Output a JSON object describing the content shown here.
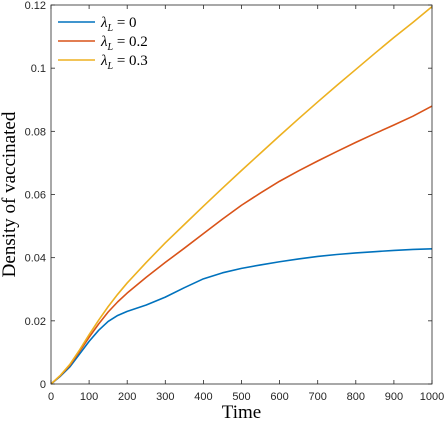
{
  "chart_data": {
    "type": "line",
    "title": "",
    "xlabel": "Time",
    "ylabel": "Density of vaccinated",
    "xlim": [
      0,
      1000
    ],
    "ylim": [
      0,
      0.12
    ],
    "xticks": [
      0,
      100,
      200,
      300,
      400,
      500,
      600,
      700,
      800,
      900,
      1000
    ],
    "yticks": [
      0,
      0.02,
      0.04,
      0.06,
      0.08,
      0.1,
      0.12
    ],
    "ytick_labels": [
      "0",
      "0.02",
      "0.04",
      "0.06",
      "0.08",
      "0.1",
      "0.12"
    ],
    "grid": false,
    "legend_position": "top-left",
    "x": [
      0,
      25,
      50,
      75,
      100,
      125,
      150,
      175,
      200,
      250,
      300,
      350,
      400,
      450,
      500,
      550,
      600,
      650,
      700,
      750,
      800,
      850,
      900,
      950,
      1000
    ],
    "series": [
      {
        "name": "λ_L = 0",
        "legend_prefix": "λ",
        "legend_sub": "L",
        "legend_suffix": " = 0",
        "color": "#0072BD",
        "values": [
          0,
          0.0025,
          0.0055,
          0.0095,
          0.0135,
          0.017,
          0.0198,
          0.0217,
          0.023,
          0.025,
          0.0275,
          0.0305,
          0.0333,
          0.0352,
          0.0366,
          0.0377,
          0.0387,
          0.0396,
          0.0404,
          0.041,
          0.0415,
          0.0419,
          0.0423,
          0.0426,
          0.0428
        ]
      },
      {
        "name": "λ_L = 0.2",
        "legend_prefix": "λ",
        "legend_sub": "L",
        "legend_suffix": " = 0.2",
        "color": "#D95319",
        "values": [
          0,
          0.0027,
          0.006,
          0.0103,
          0.0148,
          0.019,
          0.0228,
          0.026,
          0.0288,
          0.0338,
          0.0385,
          0.043,
          0.0476,
          0.0522,
          0.0566,
          0.0605,
          0.0642,
          0.0675,
          0.0706,
          0.0736,
          0.0765,
          0.0793,
          0.082,
          0.0848,
          0.088
        ]
      },
      {
        "name": "λ_L = 0.3",
        "legend_prefix": "λ",
        "legend_sub": "L",
        "legend_suffix": " = 0.3",
        "color": "#EDB120",
        "values": [
          0,
          0.0028,
          0.0063,
          0.0108,
          0.0156,
          0.0202,
          0.0245,
          0.0284,
          0.032,
          0.0385,
          0.0447,
          0.0505,
          0.0563,
          0.062,
          0.0676,
          0.0731,
          0.0786,
          0.084,
          0.0893,
          0.0945,
          0.0996,
          0.1047,
          0.1097,
          0.1145,
          0.1195
        ]
      }
    ]
  }
}
